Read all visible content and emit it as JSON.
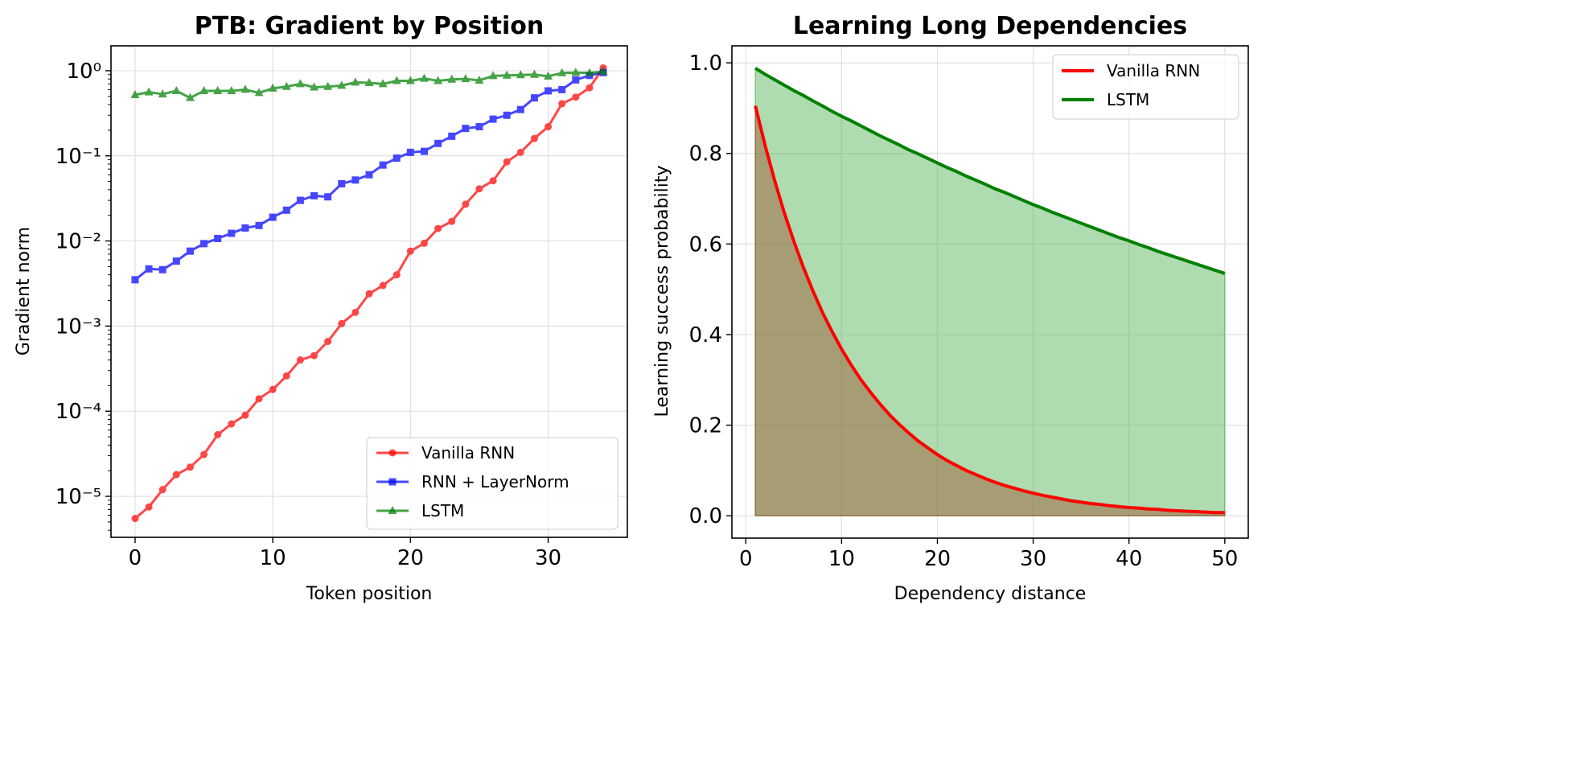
{
  "chart_data": [
    {
      "type": "line",
      "title": "PTB: Gradient by Position",
      "xlabel": "Token position",
      "ylabel": "Gradient norm",
      "yscale": "log",
      "xlim": [
        -1.75,
        35.75
      ],
      "ylim": [
        3.3e-06,
        1.96
      ],
      "grid": true,
      "legend_placement": "lower-right",
      "x_ticks": [
        0,
        10,
        20,
        30
      ],
      "x_tick_labels": [
        "0",
        "10",
        "20",
        "30"
      ],
      "y_ticks": [
        1e-05,
        0.0001,
        0.001,
        0.01,
        0.1,
        1
      ],
      "y_tick_labels": [
        "10⁻⁵",
        "10⁻⁴",
        "10⁻³",
        "10⁻²",
        "10⁻¹",
        "10⁰"
      ],
      "x": [
        0,
        1,
        2,
        3,
        4,
        5,
        6,
        7,
        8,
        9,
        10,
        11,
        12,
        13,
        14,
        15,
        16,
        17,
        18,
        19,
        20,
        21,
        22,
        23,
        24,
        25,
        26,
        27,
        28,
        29,
        30,
        31,
        32,
        33,
        34
      ],
      "series": [
        {
          "name": "Vanilla RNN",
          "color": "#ff0000",
          "marker": "circle",
          "values": [
            5.5e-06,
            7.5e-06,
            1.2e-05,
            1.8e-05,
            2.2e-05,
            3.1e-05,
            5.3e-05,
            7.1e-05,
            9e-05,
            0.00014,
            0.00018,
            0.00026,
            0.0004,
            0.00045,
            0.00066,
            0.00107,
            0.00145,
            0.0024,
            0.003,
            0.004,
            0.0076,
            0.0094,
            0.014,
            0.017,
            0.027,
            0.041,
            0.051,
            0.085,
            0.11,
            0.16,
            0.22,
            0.41,
            0.49,
            0.63,
            1.08
          ]
        },
        {
          "name": "RNN + LayerNorm",
          "color": "#0000ff",
          "marker": "square",
          "values": [
            0.0035,
            0.0047,
            0.0046,
            0.0058,
            0.0076,
            0.0093,
            0.0107,
            0.0123,
            0.0142,
            0.0152,
            0.019,
            0.023,
            0.03,
            0.034,
            0.033,
            0.047,
            0.052,
            0.06,
            0.078,
            0.094,
            0.11,
            0.113,
            0.14,
            0.17,
            0.21,
            0.22,
            0.27,
            0.3,
            0.35,
            0.48,
            0.58,
            0.6,
            0.78,
            0.88,
            0.95
          ]
        },
        {
          "name": "LSTM",
          "color": "#008000",
          "marker": "triangle",
          "values": [
            0.52,
            0.56,
            0.53,
            0.58,
            0.48,
            0.58,
            0.58,
            0.58,
            0.6,
            0.55,
            0.62,
            0.65,
            0.7,
            0.64,
            0.65,
            0.67,
            0.73,
            0.72,
            0.7,
            0.76,
            0.76,
            0.81,
            0.76,
            0.79,
            0.8,
            0.77,
            0.87,
            0.88,
            0.89,
            0.9,
            0.86,
            0.94,
            0.95,
            0.94,
            0.98
          ]
        }
      ]
    },
    {
      "type": "area",
      "title": "Learning Long Dependencies",
      "xlabel": "Dependency distance",
      "ylabel": "Learning success probability",
      "xlim": [
        -1.45,
        52.45
      ],
      "ylim": [
        -0.0494,
        1.0375
      ],
      "grid": true,
      "legend_placement": "top-right",
      "x_ticks": [
        0,
        10,
        20,
        30,
        40,
        50
      ],
      "x_tick_labels": [
        "0",
        "10",
        "20",
        "30",
        "40",
        "50"
      ],
      "y_ticks": [
        0,
        0.2,
        0.4,
        0.6,
        0.8,
        1.0
      ],
      "y_tick_labels": [
        "0.0",
        "0.2",
        "0.4",
        "0.6",
        "0.8",
        "1.0"
      ],
      "x": [
        1,
        2,
        3,
        4,
        5,
        6,
        7,
        8,
        9,
        10,
        11,
        12,
        13,
        14,
        15,
        16,
        17,
        18,
        19,
        20,
        21,
        22,
        23,
        24,
        25,
        26,
        27,
        28,
        29,
        30,
        31,
        32,
        33,
        34,
        35,
        36,
        37,
        38,
        39,
        40,
        41,
        42,
        43,
        44,
        45,
        46,
        47,
        48,
        49,
        50
      ],
      "series": [
        {
          "name": "Vanilla RNN",
          "color": "#ff0000",
          "fill": "#a0522d",
          "values": [
            0.905,
            0.819,
            0.741,
            0.67,
            0.607,
            0.549,
            0.497,
            0.449,
            0.407,
            0.368,
            0.333,
            0.301,
            0.273,
            0.247,
            0.223,
            0.202,
            0.183,
            0.165,
            0.15,
            0.135,
            0.122,
            0.111,
            0.1,
            0.091,
            0.082,
            0.074,
            0.067,
            0.061,
            0.055,
            0.05,
            0.045,
            0.041,
            0.037,
            0.033,
            0.03,
            0.027,
            0.025,
            0.022,
            0.02,
            0.018,
            0.017,
            0.015,
            0.014,
            0.012,
            0.011,
            0.01,
            0.009,
            0.008,
            0.007,
            0.007
          ]
        },
        {
          "name": "LSTM",
          "color": "#008000",
          "fill": "#4caf50",
          "values": [
            0.988,
            0.975,
            0.963,
            0.951,
            0.939,
            0.928,
            0.916,
            0.905,
            0.893,
            0.882,
            0.872,
            0.861,
            0.85,
            0.839,
            0.829,
            0.819,
            0.808,
            0.799,
            0.789,
            0.779,
            0.769,
            0.76,
            0.75,
            0.741,
            0.732,
            0.722,
            0.714,
            0.705,
            0.696,
            0.687,
            0.679,
            0.67,
            0.662,
            0.654,
            0.646,
            0.638,
            0.63,
            0.622,
            0.614,
            0.607,
            0.599,
            0.592,
            0.584,
            0.577,
            0.57,
            0.563,
            0.556,
            0.549,
            0.542,
            0.535
          ]
        }
      ]
    }
  ]
}
